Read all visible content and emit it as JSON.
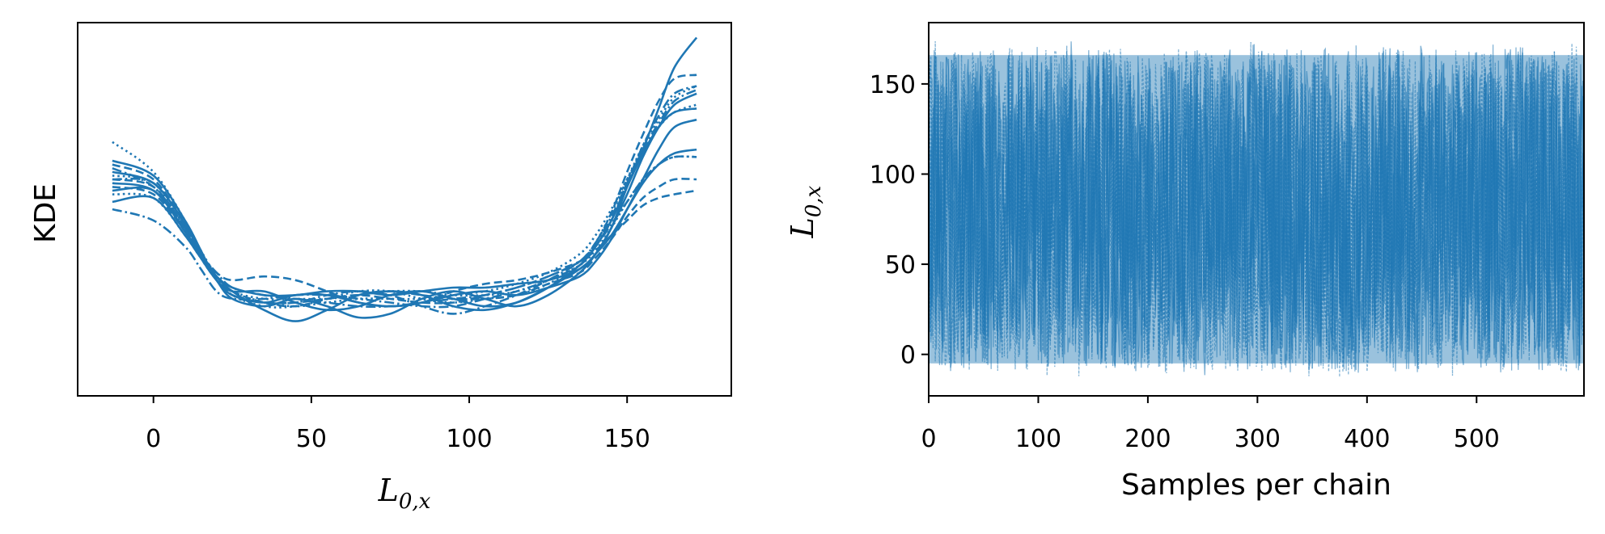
{
  "chart_data": [
    {
      "type": "line",
      "ylabel": "KDE",
      "xlabel": {
        "main": "L",
        "sub": "0,x"
      },
      "xlim": [
        -24,
        183
      ],
      "x_ticks": [
        0,
        50,
        100,
        150
      ],
      "x_tick_labels": [
        "0",
        "50",
        "100",
        "150"
      ],
      "y_ticks_shown": false,
      "color": "#1f77b4",
      "x_grid": [
        -13,
        0,
        10,
        15,
        20,
        25,
        35,
        45,
        55,
        65,
        75,
        85,
        95,
        105,
        115,
        125,
        135,
        140,
        145,
        150,
        155,
        160,
        165,
        172
      ],
      "density_scale": "relative (0 to 1)",
      "series": [
        {
          "style": "solid",
          "values": [
            0.57,
            0.55,
            0.44,
            0.38,
            0.32,
            0.28,
            0.23,
            0.2,
            0.23,
            0.27,
            0.28,
            0.27,
            0.24,
            0.23,
            0.25,
            0.29,
            0.34,
            0.38,
            0.45,
            0.56,
            0.66,
            0.77,
            0.88,
            0.96
          ]
        },
        {
          "style": "solid",
          "values": [
            0.6,
            0.57,
            0.46,
            0.38,
            0.31,
            0.26,
            0.24,
            0.26,
            0.24,
            0.21,
            0.22,
            0.26,
            0.28,
            0.26,
            0.24,
            0.27,
            0.33,
            0.38,
            0.45,
            0.54,
            0.64,
            0.72,
            0.78,
            0.81
          ]
        },
        {
          "style": "solid",
          "values": [
            0.63,
            0.59,
            0.47,
            0.39,
            0.31,
            0.27,
            0.25,
            0.27,
            0.27,
            0.25,
            0.24,
            0.25,
            0.27,
            0.28,
            0.27,
            0.29,
            0.32,
            0.36,
            0.42,
            0.5,
            0.58,
            0.66,
            0.72,
            0.74
          ]
        },
        {
          "style": "solid",
          "values": [
            0.52,
            0.53,
            0.43,
            0.37,
            0.32,
            0.29,
            0.27,
            0.27,
            0.28,
            0.28,
            0.27,
            0.28,
            0.29,
            0.29,
            0.3,
            0.31,
            0.34,
            0.38,
            0.43,
            0.5,
            0.57,
            0.62,
            0.65,
            0.66
          ]
        },
        {
          "style": "solid",
          "values": [
            0.55,
            0.55,
            0.44,
            0.37,
            0.31,
            0.28,
            0.28,
            0.25,
            0.23,
            0.24,
            0.27,
            0.28,
            0.26,
            0.24,
            0.25,
            0.29,
            0.35,
            0.4,
            0.47,
            0.56,
            0.65,
            0.72,
            0.76,
            0.77
          ]
        },
        {
          "style": "dashed",
          "values": [
            0.62,
            0.58,
            0.46,
            0.38,
            0.32,
            0.28,
            0.25,
            0.24,
            0.26,
            0.27,
            0.26,
            0.25,
            0.25,
            0.27,
            0.29,
            0.32,
            0.36,
            0.41,
            0.49,
            0.6,
            0.7,
            0.79,
            0.85,
            0.86
          ]
        },
        {
          "style": "dashed",
          "values": [
            0.58,
            0.56,
            0.45,
            0.38,
            0.33,
            0.31,
            0.32,
            0.31,
            0.28,
            0.25,
            0.24,
            0.25,
            0.28,
            0.3,
            0.31,
            0.33,
            0.36,
            0.39,
            0.43,
            0.47,
            0.51,
            0.53,
            0.54,
            0.55
          ]
        },
        {
          "style": "dashed",
          "values": [
            0.56,
            0.54,
            0.44,
            0.37,
            0.31,
            0.27,
            0.25,
            0.25,
            0.26,
            0.27,
            0.28,
            0.27,
            0.26,
            0.26,
            0.27,
            0.3,
            0.33,
            0.37,
            0.42,
            0.48,
            0.53,
            0.56,
            0.58,
            0.58
          ]
        },
        {
          "style": "dotted",
          "values": [
            0.68,
            0.6,
            0.47,
            0.39,
            0.32,
            0.27,
            0.24,
            0.24,
            0.26,
            0.28,
            0.28,
            0.26,
            0.25,
            0.26,
            0.27,
            0.3,
            0.35,
            0.41,
            0.49,
            0.58,
            0.67,
            0.74,
            0.8,
            0.83
          ]
        },
        {
          "style": "dotted",
          "values": [
            0.59,
            0.57,
            0.45,
            0.37,
            0.31,
            0.27,
            0.25,
            0.24,
            0.25,
            0.26,
            0.26,
            0.26,
            0.27,
            0.28,
            0.3,
            0.33,
            0.38,
            0.43,
            0.5,
            0.58,
            0.66,
            0.72,
            0.76,
            0.78
          ]
        },
        {
          "style": "dotted",
          "values": [
            0.54,
            0.53,
            0.43,
            0.37,
            0.32,
            0.28,
            0.26,
            0.26,
            0.26,
            0.27,
            0.28,
            0.28,
            0.27,
            0.27,
            0.28,
            0.31,
            0.35,
            0.39,
            0.45,
            0.52,
            0.58,
            0.62,
            0.64,
            0.64
          ]
        },
        {
          "style": "dashdot",
          "values": [
            0.5,
            0.47,
            0.4,
            0.34,
            0.28,
            0.26,
            0.26,
            0.27,
            0.27,
            0.26,
            0.25,
            0.24,
            0.24,
            0.26,
            0.28,
            0.31,
            0.35,
            0.4,
            0.47,
            0.57,
            0.67,
            0.75,
            0.81,
            0.83
          ]
        },
        {
          "style": "dashdot",
          "values": [
            0.61,
            0.56,
            0.45,
            0.38,
            0.33,
            0.29,
            0.27,
            0.26,
            0.25,
            0.24,
            0.24,
            0.25,
            0.26,
            0.27,
            0.29,
            0.32,
            0.36,
            0.4,
            0.46,
            0.52,
            0.58,
            0.62,
            0.64,
            0.64
          ]
        },
        {
          "style": "dashdot",
          "values": [
            0.58,
            0.57,
            0.46,
            0.38,
            0.31,
            0.27,
            0.25,
            0.25,
            0.27,
            0.28,
            0.27,
            0.24,
            0.22,
            0.24,
            0.27,
            0.31,
            0.36,
            0.41,
            0.48,
            0.57,
            0.66,
            0.73,
            0.79,
            0.82
          ]
        }
      ]
    },
    {
      "type": "line",
      "title": "",
      "xlabel": "Samples per chain",
      "ylabel": {
        "main": "L",
        "sub": "0,x"
      },
      "xlim": [
        0,
        598
      ],
      "ylim": [
        -23,
        184
      ],
      "x_ticks": [
        0,
        100,
        200,
        300,
        400,
        500
      ],
      "x_tick_labels": [
        "0",
        "100",
        "200",
        "300",
        "400",
        "500"
      ],
      "y_ticks": [
        0,
        50,
        100,
        150
      ],
      "y_tick_labels": [
        "0",
        "50",
        "100",
        "150"
      ],
      "color": "#1f77b4",
      "n_samples_per_chain": 598,
      "value_range": [
        -13,
        174
      ],
      "description_of_series": "dense MCMC trace of many chains, values uniformly spanning approx. -10 to 170"
    }
  ]
}
